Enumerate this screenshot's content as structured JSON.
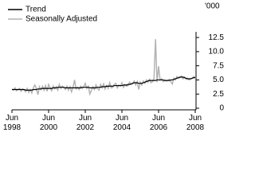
{
  "chart_data": {
    "type": "line",
    "y_label": "'000",
    "categories": [
      "Jun 1998",
      null,
      null,
      null,
      null,
      null,
      null,
      null,
      null,
      null,
      null,
      null,
      null,
      null,
      null,
      null,
      null,
      null,
      null,
      null,
      null,
      null,
      null,
      null,
      "Jun 2000",
      null,
      null,
      null,
      null,
      null,
      null,
      null,
      null,
      null,
      null,
      null,
      null,
      null,
      null,
      null,
      null,
      null,
      null,
      null,
      null,
      null,
      null,
      null,
      "Jun 2002",
      null,
      null,
      null,
      null,
      null,
      null,
      null,
      null,
      null,
      null,
      null,
      null,
      null,
      null,
      null,
      null,
      null,
      null,
      null,
      null,
      null,
      null,
      null,
      "Jun 2004",
      null,
      null,
      null,
      null,
      null,
      null,
      null,
      null,
      null,
      null,
      null,
      null,
      null,
      null,
      null,
      null,
      null,
      null,
      null,
      null,
      null,
      null,
      null,
      "Jun 2006",
      null,
      null,
      null,
      null,
      null,
      null,
      null,
      null,
      null,
      null,
      null,
      null,
      null,
      null,
      null,
      null,
      null,
      null,
      null,
      null,
      null,
      null,
      null,
      "Jun 2008"
    ],
    "series": [
      {
        "name": "Trend",
        "color": "#000000",
        "values": [
          3.3,
          3.3,
          3.3,
          3.3,
          3.3,
          3.3,
          3.3,
          3.3,
          3.3,
          3.2,
          3.2,
          3.2,
          3.2,
          3.2,
          3.3,
          3.3,
          3.3,
          3.4,
          3.4,
          3.4,
          3.5,
          3.5,
          3.5,
          3.5,
          3.5,
          3.5,
          3.5,
          3.6,
          3.6,
          3.6,
          3.7,
          3.7,
          3.7,
          3.7,
          3.7,
          3.6,
          3.6,
          3.6,
          3.6,
          3.6,
          3.6,
          3.6,
          3.6,
          3.6,
          3.6,
          3.6,
          3.7,
          3.7,
          3.7,
          3.7,
          3.7,
          3.6,
          3.6,
          3.6,
          3.6,
          3.6,
          3.7,
          3.7,
          3.7,
          3.8,
          3.8,
          3.8,
          3.9,
          3.9,
          3.9,
          3.9,
          3.9,
          4.0,
          4.0,
          4.0,
          4.0,
          4.0,
          4.0,
          4.1,
          4.1,
          4.1,
          4.2,
          4.2,
          4.3,
          4.4,
          4.5,
          4.5,
          4.5,
          4.4,
          4.4,
          4.4,
          4.5,
          4.6,
          4.7,
          4.8,
          4.9,
          4.9,
          4.9,
          4.9,
          4.9,
          5.0,
          5.0,
          5.0,
          5.0,
          5.0,
          4.9,
          4.9,
          4.9,
          4.9,
          5.0,
          5.0,
          5.1,
          5.2,
          5.3,
          5.4,
          5.5,
          5.5,
          5.5,
          5.4,
          5.3,
          5.2,
          5.2,
          5.2,
          5.3,
          5.4,
          5.4
        ]
      },
      {
        "name": "Seasonally Adjusted",
        "color": "#b3b3b3",
        "values": [
          3.4,
          3.2,
          3.6,
          3.1,
          3.3,
          3.5,
          3.0,
          3.4,
          3.2,
          2.9,
          3.5,
          2.8,
          3.3,
          2.7,
          3.6,
          4.1,
          3.5,
          2.4,
          3.8,
          3.3,
          3.9,
          3.2,
          4.0,
          3.0,
          4.2,
          3.6,
          3.1,
          3.9,
          3.4,
          3.8,
          3.2,
          4.2,
          3.5,
          3.9,
          3.6,
          3.3,
          3.9,
          3.2,
          3.8,
          2.9,
          3.7,
          5.0,
          3.4,
          3.7,
          3.3,
          3.9,
          3.5,
          3.8,
          4.4,
          3.5,
          3.9,
          2.5,
          3.1,
          3.8,
          3.3,
          4.1,
          3.5,
          3.2,
          4.2,
          3.6,
          4.3,
          3.4,
          4.0,
          3.5,
          4.5,
          3.6,
          3.7,
          4.2,
          4.4,
          3.6,
          4.1,
          3.9,
          4.5,
          3.7,
          4.2,
          3.9,
          4.0,
          4.6,
          4.2,
          4.3,
          4.8,
          4.1,
          4.7,
          3.3,
          4.6,
          4.1,
          4.8,
          4.4,
          5.0,
          4.6,
          5.1,
          4.5,
          4.7,
          5.2,
          12.2,
          4.6,
          7.4,
          5.0,
          5.2,
          4.7,
          5.0,
          4.8,
          4.9,
          5.1,
          4.7,
          4.3,
          5.3,
          5.0,
          5.6,
          5.3,
          5.4,
          5.7,
          5.2,
          5.5,
          5.1,
          5.3,
          5.0,
          5.2,
          5.3,
          5.6,
          5.5
        ]
      }
    ],
    "ylim": [
      0,
      13.5
    ],
    "yticks": [
      0,
      2.5,
      {
        "value": 5,
        "label": "5.0"
      },
      7.5,
      {
        "value": 10,
        "label": "10.0"
      },
      12.5
    ],
    "legend": "top-left"
  }
}
